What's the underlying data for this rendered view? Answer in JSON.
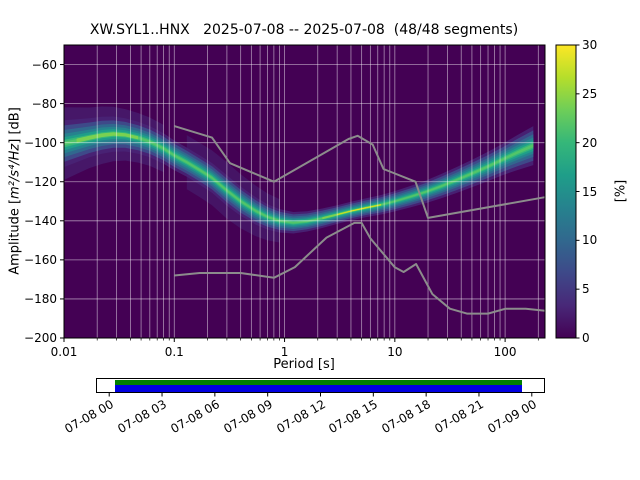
{
  "chart_data": {
    "type": "heatmap",
    "subtype": "seismic-ppsd-probability-density",
    "title": "XW.SYL1..HNX   2025-07-08 -- 2025-07-08  (48/48 segments)",
    "xlabel": "Period [s]",
    "ylabel": "Amplitude [m²/s⁴/Hz] [dB]",
    "ylabel_parts": {
      "prefix": "Amplitude [",
      "math": "m²/s⁴/Hz",
      "suffix": "] [dB]"
    },
    "x_scale": "log",
    "xlim": [
      0.01,
      230
    ],
    "ylim": [
      -200,
      -50
    ],
    "grid": true,
    "background_color": "#440154",
    "grid_color": "#ffffff",
    "x_ticks": [
      {
        "v": 0.01,
        "label": "0.01"
      },
      {
        "v": 0.1,
        "label": "0.1"
      },
      {
        "v": 1,
        "label": "1"
      },
      {
        "v": 10,
        "label": "10"
      },
      {
        "v": 100,
        "label": "100"
      }
    ],
    "y_ticks": [
      {
        "v": -60,
        "label": "−60"
      },
      {
        "v": -80,
        "label": "−80"
      },
      {
        "v": -100,
        "label": "−100"
      },
      {
        "v": -120,
        "label": "−120"
      },
      {
        "v": -140,
        "label": "−140"
      },
      {
        "v": -160,
        "label": "−160"
      },
      {
        "v": -180,
        "label": "−180"
      },
      {
        "v": -200,
        "label": "−200"
      }
    ],
    "colorbar": {
      "label": "[%]",
      "min": 0,
      "max": 30,
      "ticks": [
        {
          "v": 0,
          "label": "0"
        },
        {
          "v": 5,
          "label": "5"
        },
        {
          "v": 10,
          "label": "10"
        },
        {
          "v": 15,
          "label": "15"
        },
        {
          "v": 20,
          "label": "20"
        },
        {
          "v": 25,
          "label": "25"
        },
        {
          "v": 30,
          "label": "30"
        }
      ],
      "colors": [
        "#440154",
        "#482878",
        "#3e4989",
        "#31688e",
        "#26828e",
        "#1f9e89",
        "#35b779",
        "#6ece58",
        "#b5de2b",
        "#fde725"
      ]
    },
    "ppsd_band": {
      "periods": [
        0.01,
        0.013,
        0.017,
        0.022,
        0.028,
        0.036,
        0.047,
        0.06,
        0.08,
        0.1,
        0.13,
        0.17,
        0.22,
        0.3,
        0.4,
        0.55,
        0.7,
        0.9,
        1.2,
        1.6,
        2.2,
        3.0,
        4.0,
        5.5,
        7.5,
        10.0,
        14.0,
        19.0,
        26.0,
        36.0,
        50.0,
        70.0,
        95.0,
        130.0,
        180.0
      ],
      "mode_db": [
        -100.5,
        -99.0,
        -97.5,
        -96.2,
        -95.6,
        -96.0,
        -97.5,
        -99.5,
        -103.0,
        -106.5,
        -110.0,
        -114.0,
        -118.0,
        -124.5,
        -130.0,
        -135.0,
        -138.0,
        -140.0,
        -141.0,
        -140.3,
        -138.7,
        -136.8,
        -135.0,
        -133.3,
        -131.8,
        -130.0,
        -127.6,
        -125.2,
        -122.4,
        -119.2,
        -115.8,
        -112.2,
        -108.6,
        -105.0,
        -101.5
      ],
      "half_width_db": [
        12.0,
        11.0,
        10.0,
        9.5,
        9.0,
        8.5,
        8.2,
        8.0,
        7.8,
        7.6,
        7.5,
        7.5,
        7.6,
        7.8,
        7.5,
        7.0,
        6.5,
        6.0,
        5.5,
        5.2,
        5.0,
        4.8,
        4.8,
        4.8,
        5.0,
        5.2,
        5.5,
        5.8,
        6.2,
        6.6,
        7.0,
        7.5,
        8.0,
        9.0,
        10.0
      ],
      "layers": [
        {
          "scale": 1.85,
          "from": 0.13,
          "to": 1.1,
          "color": "#472d7b",
          "opacity": 0.45
        },
        {
          "scale": 1.55,
          "from": 0.01,
          "to": 0.09,
          "color": "#472d7b",
          "opacity": 0.5
        },
        {
          "scale": 1.0,
          "color": "#482475",
          "opacity": 0.9
        },
        {
          "scale": 0.78,
          "color": "#3e4989",
          "opacity": 1
        },
        {
          "scale": 0.58,
          "color": "#31688e",
          "opacity": 1
        },
        {
          "scale": 0.42,
          "color": "#26828e",
          "opacity": 1
        },
        {
          "scale": 0.28,
          "color": "#1f9e89",
          "opacity": 1
        },
        {
          "scale": 0.16,
          "color": "#35b779",
          "opacity": 1
        },
        {
          "scale": 0.08,
          "color": "#52c569",
          "opacity": 1
        },
        {
          "scale": 0.1,
          "from": 0.013,
          "to": 0.055,
          "color": "#7ad151",
          "opacity": 1
        },
        {
          "scale": 0.1,
          "from": 2.0,
          "to": 9.0,
          "color": "#7ad151",
          "opacity": 1
        },
        {
          "scale": 0.05,
          "from": 3.0,
          "to": 7.5,
          "color": "#d8e219",
          "opacity": 1
        },
        {
          "scale": 0.028,
          "from": 3.6,
          "to": 6.2,
          "color": "#fde725",
          "opacity": 1
        }
      ]
    },
    "noise_models": {
      "color": "#8c8c8c",
      "width": 2,
      "nhnm": [
        [
          0.1,
          -91.5
        ],
        [
          0.22,
          -97.4
        ],
        [
          0.32,
          -110.5
        ],
        [
          0.8,
          -120.0
        ],
        [
          3.8,
          -98.1
        ],
        [
          4.6,
          -96.5
        ],
        [
          6.3,
          -101.0
        ],
        [
          7.9,
          -113.5
        ],
        [
          15.4,
          -120.0
        ],
        [
          20.0,
          -138.5
        ],
        [
          230.0,
          -127.9
        ]
      ],
      "nlnm": [
        [
          0.1,
          -168.0
        ],
        [
          0.17,
          -166.7
        ],
        [
          0.4,
          -166.7
        ],
        [
          0.8,
          -169.2
        ],
        [
          1.24,
          -163.7
        ],
        [
          2.4,
          -148.6
        ],
        [
          4.3,
          -141.1
        ],
        [
          5.0,
          -141.1
        ],
        [
          6.0,
          -149.0
        ],
        [
          10.0,
          -163.8
        ],
        [
          12.0,
          -166.2
        ],
        [
          15.6,
          -162.1
        ],
        [
          21.9,
          -177.5
        ],
        [
          31.6,
          -185.0
        ],
        [
          45.0,
          -187.5
        ],
        [
          70.0,
          -187.5
        ],
        [
          101.0,
          -185.0
        ],
        [
          154.0,
          -185.0
        ],
        [
          230.0,
          -186.0
        ]
      ]
    },
    "timeline": {
      "labels": [
        {
          "h": 0,
          "label": "07-08 00"
        },
        {
          "h": 3,
          "label": "07-08 03"
        },
        {
          "h": 6,
          "label": "07-08 06"
        },
        {
          "h": 9,
          "label": "07-08 09"
        },
        {
          "h": 12,
          "label": "07-08 12"
        },
        {
          "h": 15,
          "label": "07-08 15"
        },
        {
          "h": 18,
          "label": "07-08 18"
        },
        {
          "h": 21,
          "label": "07-08 21"
        },
        {
          "h": 24,
          "label": "07-09 00"
        }
      ],
      "hours_range": [
        -0.75,
        24.75
      ],
      "coverage_hours": [
        0.35,
        23.45
      ],
      "top_color": "#008000",
      "bottom_color": "#0000e0"
    }
  }
}
